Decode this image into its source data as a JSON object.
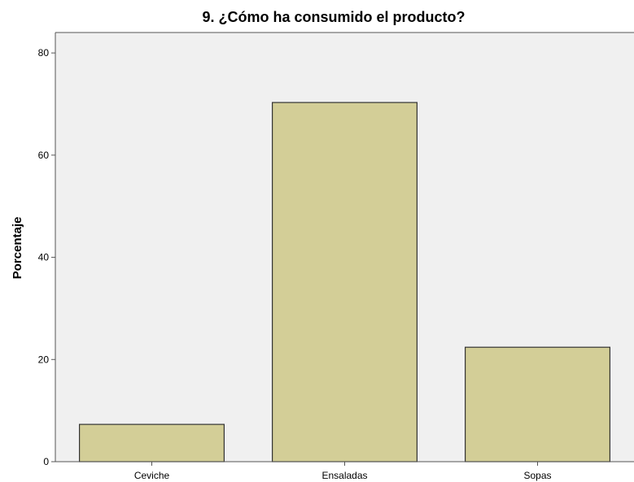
{
  "chart_data": {
    "type": "bar",
    "title": "9. ¿Cómo ha consumido el producto?",
    "xlabel": "",
    "ylabel": "Porcentaje",
    "categories": [
      "Ceviche",
      "Ensaladas",
      "Sopas"
    ],
    "values": [
      7.3,
      70.3,
      22.4
    ],
    "ylim": [
      0,
      84
    ],
    "yticks": [
      0,
      20,
      40,
      60,
      80
    ],
    "ytick_labels": [
      "0",
      "20",
      "40",
      "60",
      "80"
    ],
    "grid": false,
    "legend": "none",
    "colors": {
      "plot_background": "#f0f0f0",
      "bar_fill": "#d3ce97",
      "bar_stroke": "#333333",
      "axis": "#555555"
    }
  }
}
